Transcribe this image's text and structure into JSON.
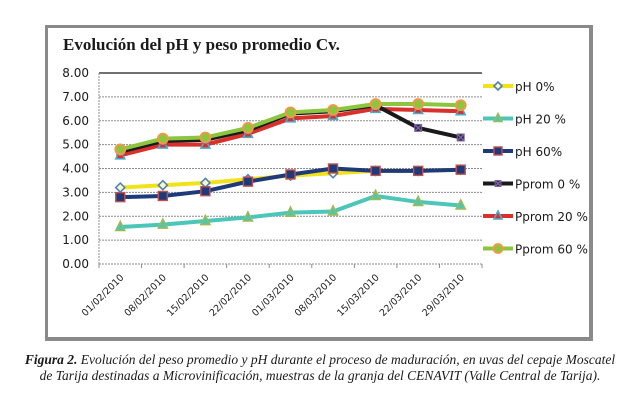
{
  "chart_data": {
    "type": "line",
    "title": "Evolución del pH y peso promedio Cv.",
    "xlabel": "",
    "ylabel": "",
    "ylim": [
      0,
      8
    ],
    "yticks": [
      "0.00",
      "1.00",
      "2.00",
      "3.00",
      "4.00",
      "5.00",
      "6.00",
      "7.00",
      "8.00"
    ],
    "grid": true,
    "legend_position": "right",
    "categories": [
      "01/02/2010",
      "08/02/2010",
      "15/02/2010",
      "22/02/2010",
      "01/03/2010",
      "08/03/2010",
      "15/03/2010",
      "22/03/2010",
      "29/03/2010"
    ],
    "series": [
      {
        "name": "pH 0%",
        "color": "#f2e21a",
        "marker": "diamond",
        "marker_color": "#4f81bd",
        "values": [
          3.2,
          3.3,
          3.4,
          3.55,
          3.7,
          3.8,
          3.9,
          3.9,
          3.95
        ]
      },
      {
        "name": "pH 20 %",
        "color": "#4bc6b9",
        "marker": "triangle",
        "marker_color": "#9bbb59",
        "values": [
          1.55,
          1.65,
          1.8,
          1.95,
          2.15,
          2.2,
          2.85,
          2.6,
          2.45
        ]
      },
      {
        "name": "pH 60%",
        "color": "#1f3a7a",
        "marker": "square",
        "marker_color": "#c0504d",
        "values": [
          2.8,
          2.85,
          3.05,
          3.45,
          3.75,
          4.0,
          3.9,
          3.9,
          3.95
        ]
      },
      {
        "name": "Pprom 0 %",
        "color": "#1a1a1a",
        "marker": "x-square",
        "marker_color": "#8064a2",
        "values": [
          4.7,
          5.15,
          5.2,
          5.6,
          6.3,
          6.4,
          6.65,
          5.7,
          5.3
        ]
      },
      {
        "name": "Pprom 20 %",
        "color": "#d9302c",
        "marker": "triangle",
        "marker_color": "#4bacc6",
        "values": [
          4.55,
          5.0,
          5.0,
          5.45,
          6.1,
          6.2,
          6.5,
          6.45,
          6.4
        ]
      },
      {
        "name": "Pprom 60 %",
        "color": "#8cc63f",
        "marker": "circle",
        "marker_color": "#f79646",
        "values": [
          4.8,
          5.25,
          5.3,
          5.7,
          6.35,
          6.45,
          6.7,
          6.7,
          6.65
        ]
      }
    ]
  },
  "caption": {
    "label": "Figura 2.",
    "line1": " Evolución del peso promedio y pH durante el proceso de maduración, en uvas del cepaje Moscatel",
    "line2": "de Tarija destinadas a Microvinificación, muestras de la granja del CENAVIT (Valle Central de Tarija)."
  }
}
